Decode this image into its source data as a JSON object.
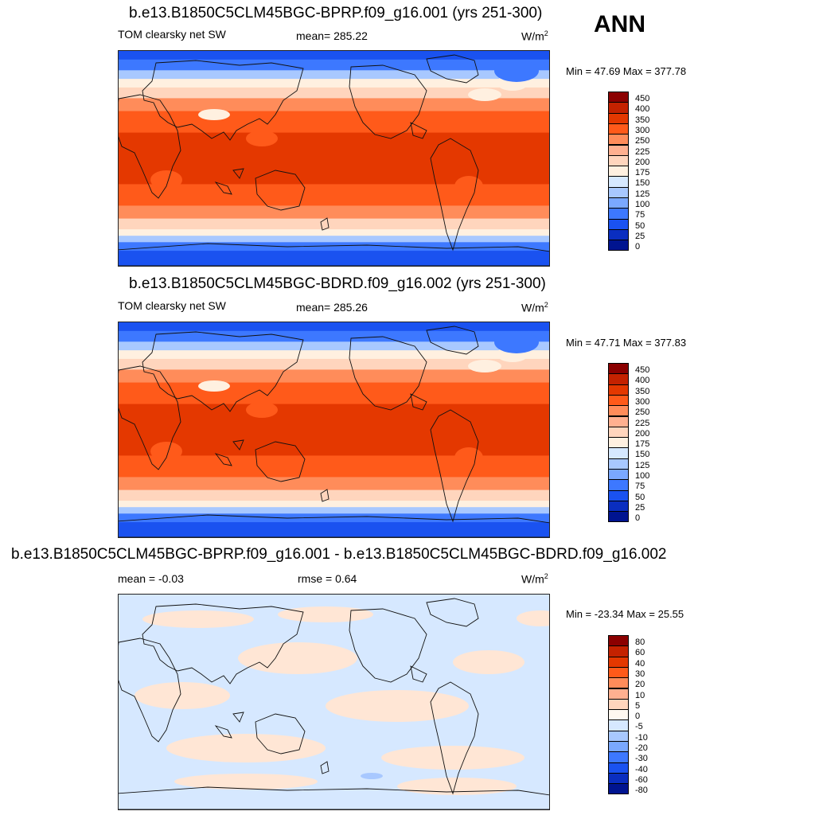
{
  "header": {
    "season": "ANN"
  },
  "panels": [
    {
      "title": "b.e13.B1850C5CLM45BGC-BPRP.f09_g16.001 (yrs 251-300)",
      "left_label": "TOM clearsky net SW",
      "center_label": "mean= 285.22",
      "units_base": "W/m",
      "units_exp": "2",
      "minmax": "Min =  47.69 Max = 377.78",
      "kind": "field"
    },
    {
      "title": "b.e13.B1850C5CLM45BGC-BDRD.f09_g16.002 (yrs 251-300)",
      "left_label": "TOM clearsky net SW",
      "center_label": "mean= 285.26",
      "units_base": "W/m",
      "units_exp": "2",
      "minmax": "Min =  47.71 Max = 377.83",
      "kind": "field"
    },
    {
      "title": "b.e13.B1850C5CLM45BGC-BPRP.f09_g16.001 - b.e13.B1850C5CLM45BGC-BDRD.f09_g16.002",
      "left_label": "mean =  -0.03",
      "center_label": "rmse =   0.64",
      "units_base": "W/m",
      "units_exp": "2",
      "minmax": "Min = -23.34 Max =  25.55",
      "kind": "diff"
    }
  ],
  "chart_data": [
    {
      "type": "heatmap",
      "title": "b.e13.B1850C5CLM45BGC-BPRP.f09_g16.001 (yrs 251-300)",
      "variable": "TOM clearsky net SW",
      "mean": 285.22,
      "min": 47.69,
      "max": 377.78,
      "units": "W/m^2",
      "colorbar_levels": [
        "450",
        "400",
        "350",
        "300",
        "250",
        "225",
        "200",
        "175",
        "150",
        "125",
        "100",
        "75",
        "50",
        "25",
        "0"
      ],
      "colorbar_colors": [
        "#8b0000",
        "#c42200",
        "#e43800",
        "#ff5a1a",
        "#ff8c5a",
        "#ffb090",
        "#ffd5bd",
        "#fff0e0",
        "#d6e8ff",
        "#a8c8ff",
        "#7aa8ff",
        "#3d78ff",
        "#1a52f0",
        "#0a2ec0",
        "#001490"
      ]
    },
    {
      "type": "heatmap",
      "title": "b.e13.B1850C5CLM45BGC-BDRD.f09_g16.002 (yrs 251-300)",
      "variable": "TOM clearsky net SW",
      "mean": 285.26,
      "min": 47.71,
      "max": 377.83,
      "units": "W/m^2",
      "colorbar_levels": [
        "450",
        "400",
        "350",
        "300",
        "250",
        "225",
        "200",
        "175",
        "150",
        "125",
        "100",
        "75",
        "50",
        "25",
        "0"
      ],
      "colorbar_colors": [
        "#8b0000",
        "#c42200",
        "#e43800",
        "#ff5a1a",
        "#ff8c5a",
        "#ffb090",
        "#ffd5bd",
        "#fff0e0",
        "#d6e8ff",
        "#a8c8ff",
        "#7aa8ff",
        "#3d78ff",
        "#1a52f0",
        "#0a2ec0",
        "#001490"
      ]
    },
    {
      "type": "heatmap",
      "title": "b.e13.B1850C5CLM45BGC-BPRP.f09_g16.001 - b.e13.B1850C5CLM45BGC-BDRD.f09_g16.002",
      "mean": -0.03,
      "rmse": 0.64,
      "min": -23.34,
      "max": 25.55,
      "units": "W/m^2",
      "colorbar_levels": [
        "80",
        "60",
        "40",
        "30",
        "20",
        "10",
        "5",
        "0",
        "-5",
        "-10",
        "-20",
        "-30",
        "-40",
        "-60",
        "-80"
      ],
      "colorbar_colors": [
        "#8b0000",
        "#c42200",
        "#e43800",
        "#ff5a1a",
        "#ff8c5a",
        "#ffb090",
        "#ffd5bd",
        "#fff8f0",
        "#d6e8ff",
        "#a8c8ff",
        "#7aa8ff",
        "#3d78ff",
        "#1a52f0",
        "#0a2ec0",
        "#001490"
      ]
    }
  ]
}
